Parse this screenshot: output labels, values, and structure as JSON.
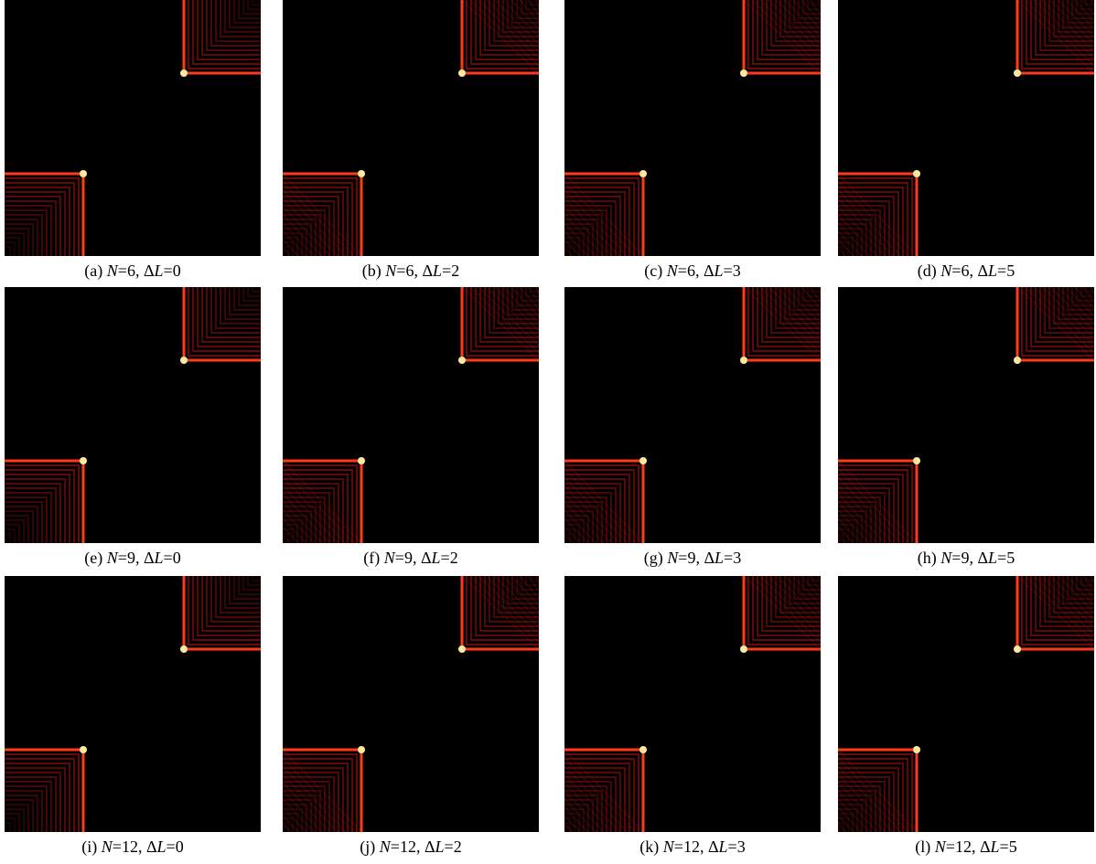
{
  "panels": [
    {
      "caption": [
        "(a) ",
        "N",
        "=6, Δ",
        "L",
        "=0"
      ]
    },
    {
      "caption": [
        "(b) ",
        "N",
        "=6, Δ",
        "L",
        "=2"
      ]
    },
    {
      "caption": [
        "(c) ",
        "N",
        "=6, Δ",
        "L",
        "=3"
      ]
    },
    {
      "caption": [
        "(d) ",
        "N",
        "=6, Δ",
        "L",
        "=5"
      ]
    },
    {
      "caption": [
        "(e) ",
        "N",
        "=9, Δ",
        "L",
        "=0"
      ]
    },
    {
      "caption": [
        "(f) ",
        "N",
        "=9, Δ",
        "L",
        "=2"
      ]
    },
    {
      "caption": [
        "(g) ",
        "N",
        "=9, Δ",
        "L",
        "=3"
      ]
    },
    {
      "caption": [
        "(h) ",
        "N",
        "=9, Δ",
        "L",
        "=5"
      ]
    },
    {
      "caption": [
        "(i) ",
        "N",
        "=12, Δ",
        "L",
        "=0"
      ]
    },
    {
      "caption": [
        "(j) ",
        "N",
        "=12, Δ",
        "L",
        "=2"
      ]
    },
    {
      "caption": [
        "(k) ",
        "N",
        "=12, Δ",
        "L",
        "=3"
      ]
    },
    {
      "caption": [
        "(l) ",
        "N",
        "=12, Δ",
        "L",
        "=5"
      ]
    }
  ]
}
